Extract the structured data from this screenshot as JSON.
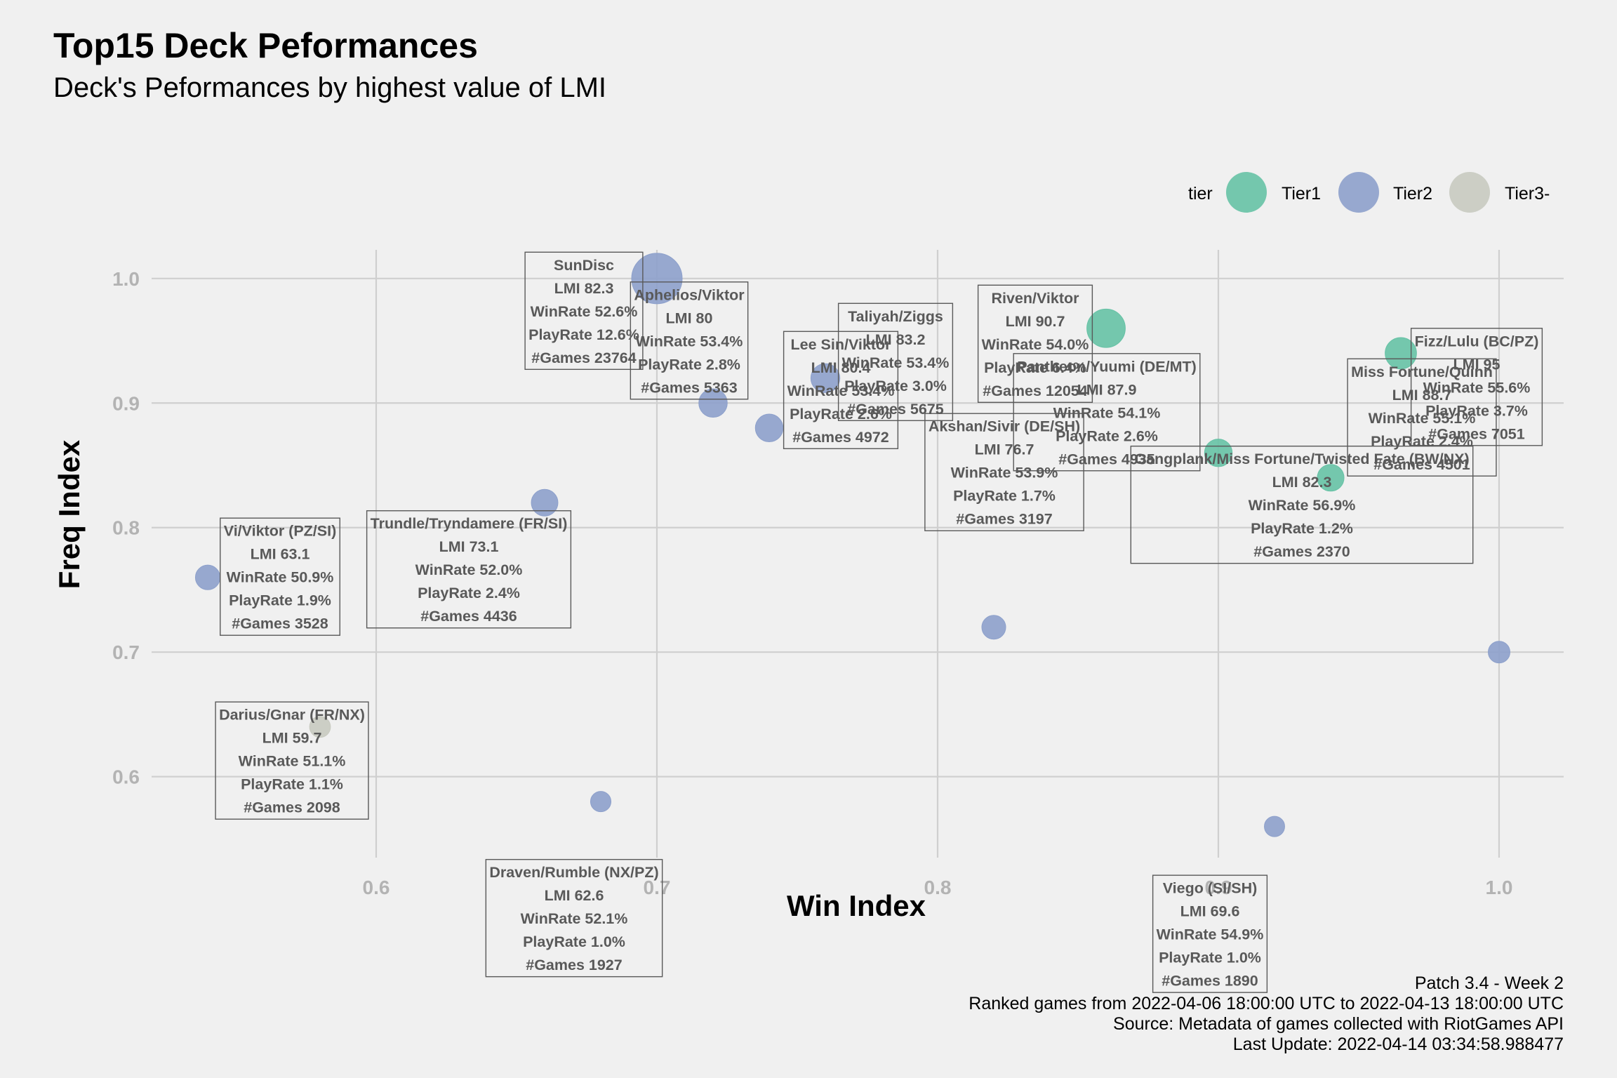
{
  "chart_data": {
    "type": "scatter",
    "title": "Top15 Deck Peformances",
    "subtitle": "Deck's Peformances by highest value of LMI",
    "xlabel": "Win Index",
    "ylabel": "Freq Index",
    "xlim": [
      0.52,
      1.023
    ],
    "ylim": [
      0.535,
      1.023
    ],
    "x_ticks": [
      0.6,
      0.7,
      0.8,
      0.9,
      1.0
    ],
    "y_ticks": [
      0.6,
      0.7,
      0.8,
      0.9,
      1.0
    ],
    "x_tick_labels": [
      "0.6",
      "0.7",
      "0.8",
      "0.9",
      "1.0"
    ],
    "y_tick_labels": [
      "0.6",
      "0.7",
      "0.8",
      "0.9",
      "1.0"
    ],
    "grid": true,
    "legend": {
      "title": "tier",
      "placement": "top-right",
      "items": [
        {
          "name": "Tier1",
          "color": "#66c2a5"
        },
        {
          "name": "Tier2",
          "color": "#8da0cb"
        },
        {
          "name": "Tier3-",
          "color": "#c8cac0"
        }
      ]
    },
    "points": [
      {
        "deck": "Fizz/Lulu (BC/PZ)",
        "x": 0.965,
        "y": 0.94,
        "tier": "Tier1",
        "lmi": "LMI 95",
        "winrate": "WinRate 55.6%",
        "playrate": "PlayRate 3.7%",
        "games": "#Games 7051",
        "size_value": 7051
      },
      {
        "deck": "Riven/Viktor",
        "x": 0.86,
        "y": 0.96,
        "tier": "Tier1",
        "lmi": "LMI 90.7",
        "winrate": "WinRate 54.0%",
        "playrate": "PlayRate 6.4%",
        "games": "#Games 12054",
        "size_value": 12054
      },
      {
        "deck": "Miss Fortune/Quinn",
        "x": 0.94,
        "y": 0.84,
        "tier": "Tier1",
        "lmi": "LMI 88.7",
        "winrate": "WinRate 55.1%",
        "playrate": "PlayRate 2.4%",
        "games": "#Games 4501",
        "size_value": 4501
      },
      {
        "deck": "Pantheon/Yuumi (DE/MT)",
        "x": 0.9,
        "y": 0.86,
        "tier": "Tier1",
        "lmi": "LMI 87.9",
        "winrate": "WinRate 54.1%",
        "playrate": "PlayRate 2.6%",
        "games": "#Games 4935",
        "size_value": 4935
      },
      {
        "deck": "Taliyah/Ziggs",
        "x": 0.76,
        "y": 0.92,
        "tier": "Tier2",
        "lmi": "LMI 83.2",
        "winrate": "WinRate 53.4%",
        "playrate": "PlayRate 3.0%",
        "games": "#Games 5675",
        "size_value": 5675
      },
      {
        "deck": "SunDisc",
        "x": 0.7,
        "y": 1.0,
        "tier": "Tier2",
        "lmi": "LMI 82.3",
        "winrate": "WinRate 52.6%",
        "playrate": "PlayRate 12.6%",
        "games": "#Games 23764",
        "size_value": 23764
      },
      {
        "deck": "Gangplank/Miss Fortune/Twisted Fate (BW/NX)",
        "x": 1.0,
        "y": 0.7,
        "tier": "Tier2",
        "lmi": "LMI 82.3",
        "winrate": "WinRate 56.9%",
        "playrate": "PlayRate 1.2%",
        "games": "#Games 2370",
        "size_value": 2370
      },
      {
        "deck": "Lee Sin/Viktor",
        "x": 0.74,
        "y": 0.88,
        "tier": "Tier2",
        "lmi": "LMI 80.4",
        "winrate": "WinRate 53.4%",
        "playrate": "PlayRate 2.6%",
        "games": "#Games 4972",
        "size_value": 4972
      },
      {
        "deck": "Aphelios/Viktor",
        "x": 0.72,
        "y": 0.9,
        "tier": "Tier2",
        "lmi": "LMI 80",
        "winrate": "WinRate 53.4%",
        "playrate": "PlayRate 2.8%",
        "games": "#Games 5363",
        "size_value": 5363
      },
      {
        "deck": "Akshan/Sivir (DE/SH)",
        "x": 0.82,
        "y": 0.72,
        "tier": "Tier2",
        "lmi": "LMI 76.7",
        "winrate": "WinRate 53.9%",
        "playrate": "PlayRate 1.7%",
        "games": "#Games 3197",
        "size_value": 3197
      },
      {
        "deck": "Trundle/Tryndamere (FR/SI)",
        "x": 0.66,
        "y": 0.82,
        "tier": "Tier2",
        "lmi": "LMI 73.1",
        "winrate": "WinRate 52.0%",
        "playrate": "PlayRate 2.4%",
        "games": "#Games 4436",
        "size_value": 4436
      },
      {
        "deck": "Viego (SI/SH)",
        "x": 0.92,
        "y": 0.56,
        "tier": "Tier2",
        "lmi": "LMI 69.6",
        "winrate": "WinRate 54.9%",
        "playrate": "PlayRate 1.0%",
        "games": "#Games 1890",
        "size_value": 1890
      },
      {
        "deck": "Vi/Viktor (PZ/SI)",
        "x": 0.54,
        "y": 0.76,
        "tier": "Tier2",
        "lmi": "LMI 63.1",
        "winrate": "WinRate 50.9%",
        "playrate": "PlayRate 1.9%",
        "games": "#Games 3528",
        "size_value": 3528
      },
      {
        "deck": "Draven/Rumble (NX/PZ)",
        "x": 0.68,
        "y": 0.58,
        "tier": "Tier2",
        "lmi": "LMI 62.6",
        "winrate": "WinRate 52.1%",
        "playrate": "PlayRate 1.0%",
        "games": "#Games 1927",
        "size_value": 1927
      },
      {
        "deck": "Darius/Gnar (FR/NX)",
        "x": 0.58,
        "y": 0.64,
        "tier": "Tier3-",
        "lmi": "LMI 59.7",
        "winrate": "WinRate 51.1%",
        "playrate": "PlayRate 1.1%",
        "games": "#Games 2098",
        "size_value": 2098
      }
    ]
  },
  "caption": {
    "line1": "Patch 3.4 - Week 2",
    "line2": "Ranked games from 2022-04-06 18:00:00 UTC to 2022-04-13 18:00:00 UTC",
    "line3": "Source: Metadata of games collected with RiotGames API",
    "line4": "Last Update: 2022-04-14 03:34:58.988477"
  }
}
